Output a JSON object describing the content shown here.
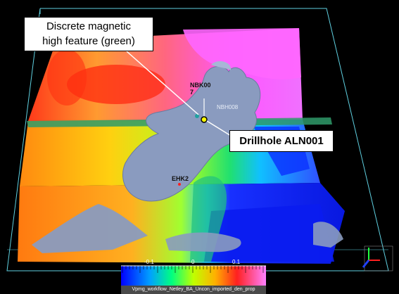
{
  "callouts": {
    "magnetic_line1": "Discrete magnetic",
    "magnetic_line2": "high feature (green)",
    "drillhole": "Drillhole ALN001"
  },
  "drillhole_labels": {
    "nbk007_a": "NBK00",
    "nbk007_b": "7",
    "nbh008": "NBH008",
    "ehk2": "EHK2"
  },
  "colorbar": {
    "ticks": [
      "-0.1",
      "0",
      "0.1"
    ],
    "label": "Vpmg_workflow_Netley_BA_Uncon_imported_den_prop"
  },
  "colors": {
    "background": "#000000",
    "surface": "#8a9bbf",
    "slice": "#2f9a6a",
    "box": "#5fd0e0",
    "marker": "#ffff00"
  }
}
